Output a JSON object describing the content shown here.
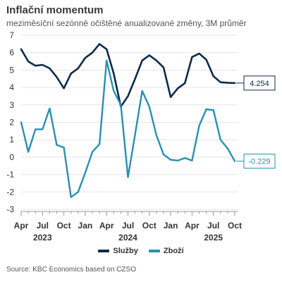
{
  "title": "Inflační momentum",
  "subtitle": "meziměsíční sezónně očištěné anualizované změny, 3M průměr",
  "source": "Source: KBC Economics based on CZSO",
  "colors": {
    "sluzby": "#0d2b4a",
    "zbozi": "#2a8fb0",
    "grid": "#e3e3e3"
  },
  "chart_data": {
    "type": "line",
    "ylim": [
      -3,
      7
    ],
    "yticks": [
      -3,
      -2,
      -1,
      0,
      1,
      2,
      3,
      4,
      5,
      6,
      7
    ],
    "month_ticks": [
      "Apr",
      "Jul",
      "Oct",
      "Jan",
      "Apr",
      "Jul",
      "Oct",
      "Jan",
      "Apr",
      "Jul",
      "Oct"
    ],
    "year_ticks": [
      "2023",
      "2024",
      "2025"
    ],
    "x": [
      "2023-04",
      "2023-05",
      "2023-06",
      "2023-07",
      "2023-08",
      "2023-09",
      "2023-10",
      "2023-11",
      "2023-12",
      "2024-01",
      "2024-02",
      "2024-03",
      "2024-04",
      "2024-05",
      "2024-06",
      "2024-07",
      "2024-08",
      "2024-09",
      "2024-10",
      "2024-11",
      "2024-12",
      "2025-01",
      "2025-02",
      "2025-03",
      "2025-04",
      "2025-05",
      "2025-06",
      "2025-07",
      "2025-08",
      "2025-09",
      "2025-10"
    ],
    "series": [
      {
        "name": "Služby",
        "color": "#0d2b4a",
        "values": [
          6.2,
          5.5,
          5.25,
          5.3,
          5.1,
          4.6,
          3.95,
          4.8,
          5.1,
          5.7,
          6.0,
          6.5,
          6.2,
          4.8,
          2.9,
          3.5,
          4.5,
          5.55,
          5.85,
          5.55,
          5.15,
          3.45,
          3.95,
          4.25,
          5.75,
          5.95,
          5.6,
          4.65,
          4.3,
          4.27,
          4.254
        ],
        "end_label": "4.254"
      },
      {
        "name": "Zboží",
        "color": "#2a8fb0",
        "values": [
          2.0,
          0.3,
          1.6,
          1.6,
          2.8,
          0.7,
          0.55,
          -2.3,
          -2.0,
          -0.9,
          0.3,
          0.75,
          5.55,
          3.8,
          3.0,
          -1.15,
          1.3,
          3.8,
          2.9,
          1.25,
          0.15,
          -0.15,
          -0.2,
          -0.05,
          -0.2,
          1.8,
          2.75,
          2.7,
          1.0,
          0.5,
          -0.229
        ],
        "end_label": "-0.229"
      }
    ]
  }
}
